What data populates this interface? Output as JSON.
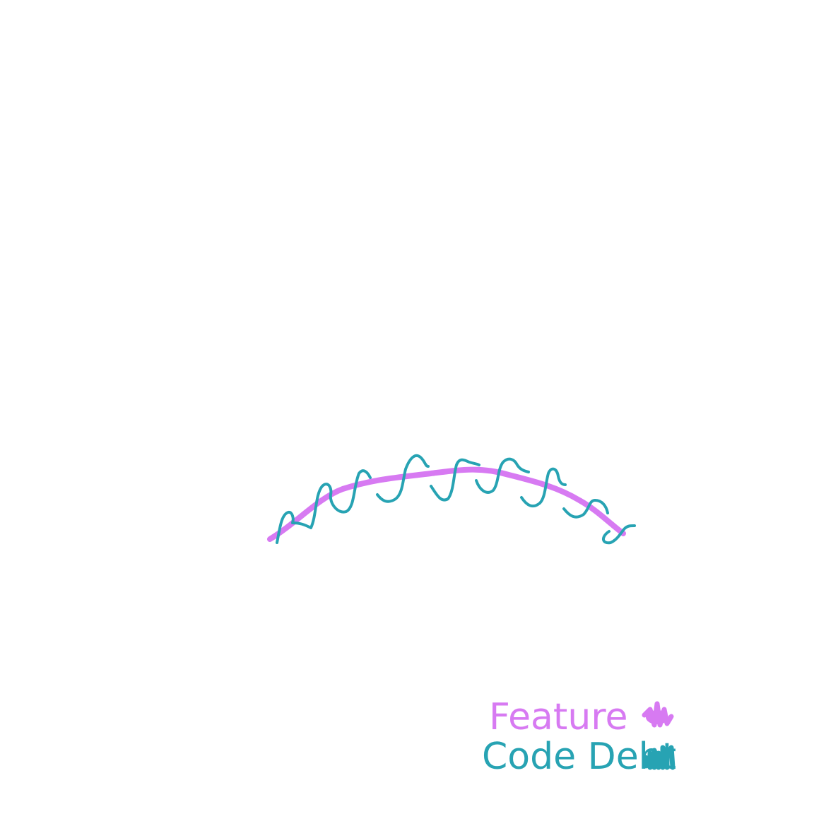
{
  "colors": {
    "feature": "#d77af2",
    "code_debt": "#27a3b3",
    "background": "#ffffff"
  },
  "legend": {
    "items": [
      {
        "label": "Feature",
        "color": "#d77af2",
        "swatch": "scribble-swatch"
      },
      {
        "label": "Code Debt",
        "color": "#27a3b3",
        "swatch": "scribble-swatch"
      }
    ]
  }
}
